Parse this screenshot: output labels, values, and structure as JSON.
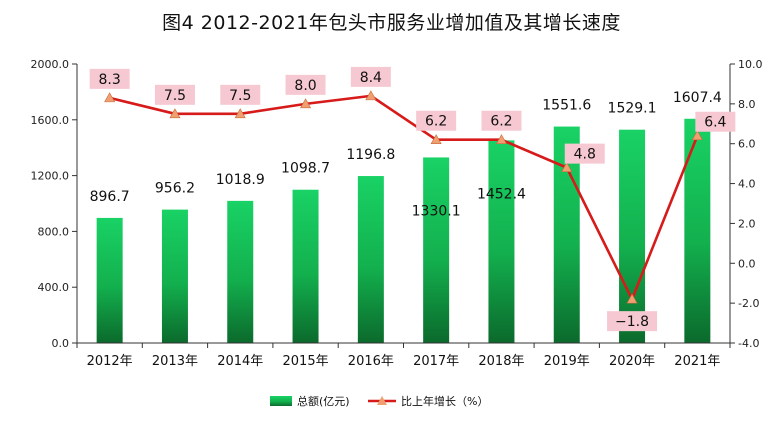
{
  "chart_data": {
    "type": "bar",
    "title": "图4  2012-2021年包头市服务业增加值及其增长速度",
    "categories": [
      "2012年",
      "2013年",
      "2014年",
      "2015年",
      "2016年",
      "2017年",
      "2018年",
      "2019年",
      "2020年",
      "2021年"
    ],
    "series": [
      {
        "name": "总额(亿元)",
        "type": "bar",
        "axis": "left",
        "values": [
          896.7,
          956.2,
          1018.9,
          1098.7,
          1196.8,
          1330.1,
          1452.4,
          1551.6,
          1529.1,
          1607.4
        ],
        "labels": [
          "896.7",
          "956.2",
          "1018.9",
          "1098.7",
          "1196.8",
          "1330.1",
          "1452.4",
          "1551.6",
          "1529.1",
          "1607.4"
        ],
        "color": "#16c35a"
      },
      {
        "name": "比上年增长（%）",
        "type": "line",
        "axis": "right",
        "values": [
          8.3,
          7.5,
          7.5,
          8.0,
          8.4,
          6.2,
          6.2,
          4.8,
          -1.8,
          6.4
        ],
        "labels": [
          "8.3",
          "7.5",
          "7.5",
          "8.0",
          "8.4",
          "6.2",
          "6.2",
          "4.8",
          "−1.8",
          "6.4"
        ],
        "color": "#d71a1a",
        "marker_color": "#f0a070"
      }
    ],
    "y_left": {
      "ylim": [
        0,
        2000
      ],
      "ticks": [
        0,
        400,
        800,
        1200,
        1600,
        2000
      ],
      "tick_labels": [
        "0.0",
        "400.0",
        "800.0",
        "1200.0",
        "1600.0",
        "2000.0"
      ]
    },
    "y_right": {
      "ylim": [
        -4,
        10
      ],
      "ticks": [
        -4,
        -2,
        0,
        2,
        4,
        6,
        8,
        10
      ],
      "tick_labels": [
        "-4.0",
        "-2.0",
        "0.0",
        "2.0",
        "4.0",
        "6.0",
        "8.0",
        "10.0"
      ]
    },
    "legend_position": "bottom",
    "grid": false,
    "label_background": "#f6c9d2"
  }
}
